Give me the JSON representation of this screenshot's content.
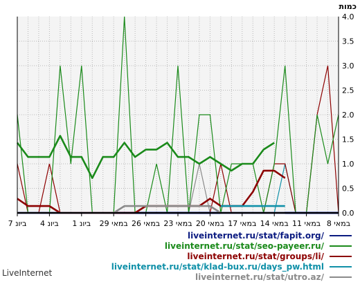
{
  "chart_data": {
    "type": "line",
    "ylabel": "כמות",
    "ylim": [
      0,
      4
    ],
    "yticks": [
      "0.0",
      "0.5",
      "1.0",
      "1.5",
      "2.0",
      "2.5",
      "3.0",
      "3.5",
      "4.0"
    ],
    "xtick_labels": [
      "7 ביונ",
      "4 ביונ",
      "1 ביונ",
      "29 במאי",
      "26 במאי",
      "23 במאי",
      "20 במאי",
      "17 במאי",
      "14 במאי",
      "11 במאי",
      "8 במאי"
    ],
    "grid": true,
    "background": "#f4f4f4",
    "n_points": 31,
    "series": [
      {
        "name": "liveinternet.ru/stat/fapit.org/",
        "color": "#0a1a80",
        "values": [
          0,
          0,
          0,
          0,
          0,
          0,
          0,
          0,
          0,
          0,
          0,
          0,
          0,
          0,
          0,
          0,
          0,
          0,
          0,
          0,
          0,
          0,
          0,
          0,
          0,
          0,
          0,
          0,
          0,
          0,
          0
        ]
      },
      {
        "name": "liveinternet.ru/stat/seo-payeer.ru/",
        "color": "#1a8a1a",
        "values": [
          2,
          0,
          0,
          0,
          3,
          1,
          3,
          0,
          0,
          0,
          4,
          0,
          0,
          1,
          0,
          3,
          0,
          2,
          2,
          0,
          1,
          1,
          1,
          0,
          1,
          3,
          0,
          0,
          2,
          1,
          2
        ]
      },
      {
        "name": "liveinternet.ru/stat/groups/li/",
        "color": "#8c0000",
        "values": [
          1,
          0,
          0,
          1,
          0,
          0,
          0,
          0,
          0,
          0,
          0,
          0,
          0,
          0,
          0,
          0,
          0,
          0,
          0,
          1,
          0,
          0,
          0,
          0,
          1,
          1,
          0,
          0,
          2,
          3,
          0
        ]
      },
      {
        "name": "liveinternet.ru/stat/klad-bux.ru/days_pw.html",
        "color": "#1090a8",
        "values": [
          0,
          0,
          0,
          0,
          0,
          0,
          0,
          0,
          0,
          0,
          0,
          0,
          0,
          0,
          0,
          0,
          0,
          0,
          0,
          0,
          0,
          0,
          0,
          0,
          0,
          1,
          0,
          0,
          0,
          0,
          0
        ]
      },
      {
        "name": "liveinternet.ru/stat/utro.az/",
        "color": "#8a8a8a",
        "values": [
          0,
          0,
          0,
          0,
          0,
          0,
          0,
          0,
          0,
          0,
          0,
          0,
          0,
          0,
          0,
          0,
          0,
          1,
          0,
          0,
          0,
          0,
          0,
          0,
          0,
          0,
          0,
          0,
          0,
          0,
          0
        ]
      }
    ],
    "averages": [
      {
        "color": "#1a8a1a",
        "values": [
          1.43,
          1.14,
          1.14,
          1.14,
          1.57,
          1.14,
          1.14,
          0.71,
          1.14,
          1.14,
          1.43,
          1.14,
          1.29,
          1.29,
          1.43,
          1.14,
          1.14,
          1.0,
          1.14,
          1.0,
          0.86,
          1.0,
          1.0,
          1.29,
          1.43
        ]
      },
      {
        "color": "#8c0000",
        "values": [
          0.29,
          0.14,
          0.14,
          0.14,
          0,
          0,
          0,
          0,
          0,
          0,
          0,
          0,
          0.14,
          0.14,
          0.14,
          0.14,
          0.14,
          0.14,
          0.29,
          0.14,
          0.14,
          0.14,
          0.43,
          0.86,
          0.86,
          0.71
        ]
      },
      {
        "color": "#1090a8",
        "values": [
          null,
          null,
          null,
          null,
          null,
          null,
          null,
          null,
          null,
          null,
          null,
          null,
          null,
          null,
          null,
          null,
          null,
          null,
          null,
          0.14,
          0.14,
          0.14,
          0.14,
          0.14,
          0.14,
          0.14
        ]
      },
      {
        "color": "#8a8a8a",
        "values": [
          0,
          0,
          0,
          0,
          0,
          0,
          0,
          0,
          0,
          0,
          0.14,
          0.14,
          0.14,
          0.14,
          0.14,
          0.14,
          0.14,
          0.14,
          0.14,
          0,
          0,
          0,
          0,
          0,
          0,
          0
        ]
      }
    ]
  },
  "brand": "LiveInternet"
}
